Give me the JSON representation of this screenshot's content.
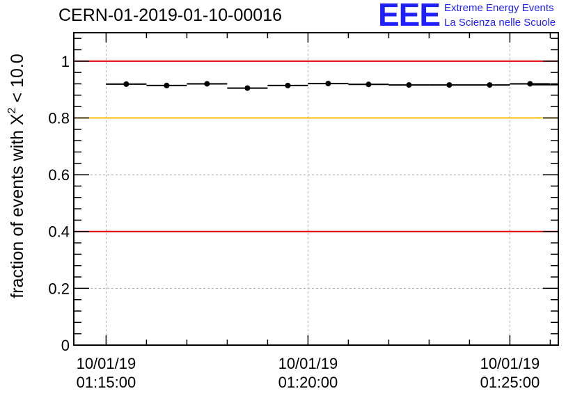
{
  "title": "CERN-01-2019-01-10-00016",
  "logo": {
    "mark": "EEE",
    "line1": "Extreme Energy Events",
    "line2": "La Scienza nelle Scuole",
    "color": "#1f1fff"
  },
  "chart_data": {
    "type": "scatter",
    "title": "CERN-01-2019-01-10-00016",
    "xlabel": "",
    "ylabel": "fraction of events with χ² < 10.0",
    "ylabel_parts": {
      "prefix": "fraction of events with ",
      "symbol": "X",
      "sup": "2",
      "suffix": " < 10.0"
    },
    "x_unit": "minutes after 01:15:00",
    "xlim": [
      -0.8,
      11.2
    ],
    "ylim": [
      0,
      1.1
    ],
    "grid": true,
    "x_ticks": [
      {
        "value": 0,
        "date": "10/01/19",
        "time": "01:15:00"
      },
      {
        "value": 5,
        "date": "10/01/19",
        "time": "01:20:00"
      },
      {
        "value": 10,
        "date": "10/01/19",
        "time": "01:25:00"
      }
    ],
    "y_ticks": [
      0,
      0.2,
      0.4,
      0.6,
      0.8,
      1
    ],
    "y_tick_labels": [
      "0",
      "0.2",
      "0.4",
      "0.6",
      "0.8",
      "1"
    ],
    "reference_lines": [
      {
        "y": 1.0,
        "color": "#e00000"
      },
      {
        "y": 0.8,
        "color": "#ffc000"
      },
      {
        "y": 0.4,
        "color": "#e00000"
      }
    ],
    "series": [
      {
        "x": [
          0.5,
          1.5,
          2.5,
          3.5,
          4.5,
          5.5,
          6.5,
          7.5,
          8.5,
          9.5,
          10.5,
          11.0
        ],
        "y": [
          0.919,
          0.914,
          0.92,
          0.905,
          0.914,
          0.921,
          0.918,
          0.916,
          0.916,
          0.916,
          0.92,
          0.917
        ],
        "x_err": [
          0.5,
          0.5,
          0.5,
          0.5,
          0.5,
          0.5,
          0.5,
          0.5,
          0.5,
          0.5,
          0.5,
          0.5
        ]
      }
    ]
  }
}
